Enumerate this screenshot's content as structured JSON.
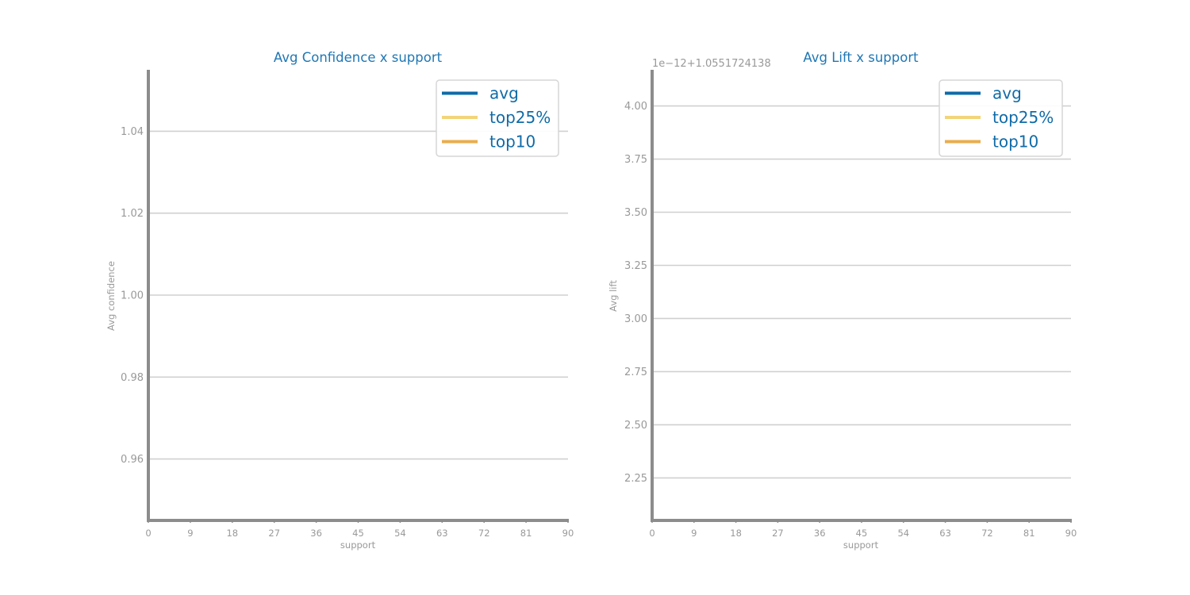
{
  "colors": {
    "title": "#1f77b4",
    "legend_text": "#0f6ba8",
    "axis": "#8c8c8c",
    "tick_label": "#999999",
    "grid": "#d0d0d0",
    "avg": "#0f6ba8",
    "top25": "#f2d57a",
    "top10": "#e9ad4d"
  },
  "chart_data": [
    {
      "type": "line",
      "title": "Avg Confidence x support",
      "xlabel": "support",
      "ylabel": "Avg confidence",
      "xlim": [
        0,
        90
      ],
      "ylim": [
        0.945,
        1.055
      ],
      "x_ticks": [
        0,
        9,
        18,
        27,
        36,
        45,
        54,
        63,
        72,
        81,
        90
      ],
      "y_ticks": [
        0.96,
        0.98,
        1.0,
        1.02,
        1.04
      ],
      "y_tick_labels": [
        "0.96",
        "0.98",
        "1.00",
        "1.02",
        "1.04"
      ],
      "offset_label": "",
      "grid": "horizontal",
      "legend_position": "top-right",
      "series": [
        {
          "name": "avg",
          "color_key": "avg",
          "x": [],
          "values": []
        },
        {
          "name": "top25%",
          "color_key": "top25",
          "x": [],
          "values": []
        },
        {
          "name": "top10",
          "color_key": "top10",
          "x": [],
          "values": []
        }
      ]
    },
    {
      "type": "line",
      "title": "Avg Lift x support",
      "xlabel": "support",
      "ylabel": "Avg lift",
      "xlim": [
        0,
        90
      ],
      "ylim": [
        2.05,
        4.17
      ],
      "x_ticks": [
        0,
        9,
        18,
        27,
        36,
        45,
        54,
        63,
        72,
        81,
        90
      ],
      "y_ticks": [
        2.25,
        2.5,
        2.75,
        3.0,
        3.25,
        3.5,
        3.75,
        4.0
      ],
      "y_tick_labels": [
        "2.25",
        "2.50",
        "2.75",
        "3.00",
        "3.25",
        "3.50",
        "3.75",
        "4.00"
      ],
      "offset_label": "1e−12+1.0551724138",
      "grid": "horizontal",
      "legend_position": "top-right",
      "series": [
        {
          "name": "avg",
          "color_key": "avg",
          "x": [],
          "values": []
        },
        {
          "name": "top25%",
          "color_key": "top25",
          "x": [],
          "values": []
        },
        {
          "name": "top10",
          "color_key": "top10",
          "x": [],
          "values": []
        }
      ]
    }
  ]
}
